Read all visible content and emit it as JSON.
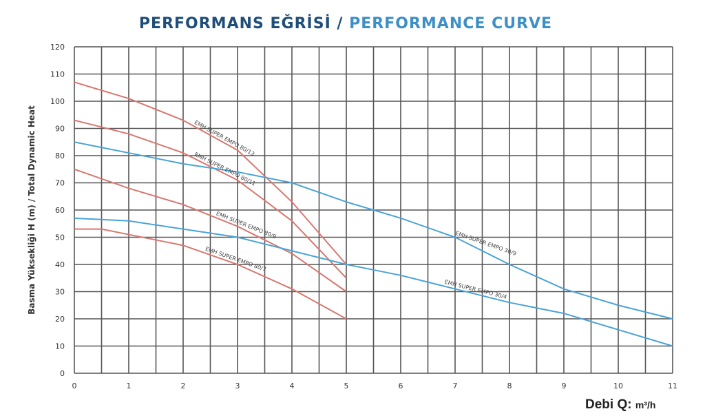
{
  "title": {
    "part1": "PERFORMANS EĞRİSİ /",
    "part2": "PERFORMANCE CURVE",
    "color1": "#1f4e79",
    "color2": "#3d8fc6"
  },
  "chart_data": {
    "type": "line",
    "title": "PERFORMANS EĞRİSİ / PERFORMANCE CURVE",
    "xlabel_main": "Debi Q:",
    "xlabel_unit": "m³/h",
    "ylabel": "Basma Yüksekliği H (m) / Total Dynamic Heat",
    "xlim": [
      0,
      11
    ],
    "ylim": [
      0,
      120
    ],
    "xticks": [
      0,
      1,
      2,
      3,
      4,
      5,
      6,
      7,
      8,
      9,
      10,
      11
    ],
    "yticks": [
      0,
      10,
      20,
      30,
      40,
      50,
      60,
      70,
      80,
      90,
      100,
      110,
      120
    ],
    "grid": true,
    "series": [
      {
        "name": "EMH SUPER EMPO 80/13",
        "color": "#d9776f",
        "x": [
          0,
          1,
          2,
          3,
          4,
          5
        ],
        "y": [
          107,
          101,
          93,
          82,
          63,
          40
        ]
      },
      {
        "name": "EMH SUPER EMPO 80/11",
        "color": "#d9776f",
        "x": [
          0,
          1,
          2,
          3,
          4,
          5
        ],
        "y": [
          93,
          88,
          81,
          71,
          56,
          35
        ]
      },
      {
        "name": "EMH SUPER EMPO 80/9",
        "color": "#d9776f",
        "x": [
          0,
          1,
          2,
          3,
          4,
          5
        ],
        "y": [
          75,
          68,
          62,
          54,
          44,
          30
        ]
      },
      {
        "name": "EMH SUPER EMPO 80/7",
        "color": "#d9776f",
        "x": [
          0,
          0.5,
          1,
          2,
          3,
          4,
          5
        ],
        "y": [
          53,
          53,
          51,
          47,
          40,
          31,
          20
        ]
      },
      {
        "name": "EMH SUPER EMPO 30/9",
        "color": "#4aa3d8",
        "x": [
          0,
          1,
          2,
          3,
          4,
          5,
          6,
          7,
          8,
          9,
          10,
          11
        ],
        "y": [
          85,
          81,
          77,
          74,
          70,
          63,
          57,
          50,
          40,
          31,
          25,
          20
        ]
      },
      {
        "name": "EMH SUPER EMPO 30/4",
        "color": "#4aa3d8",
        "x": [
          0,
          1,
          2,
          3,
          4,
          5,
          6,
          7,
          8,
          9,
          10,
          11
        ],
        "y": [
          57,
          56,
          53,
          50,
          45,
          40,
          36,
          31,
          26,
          22,
          16,
          10
        ]
      }
    ],
    "labels": [
      {
        "series": 0,
        "at_x": 2.2
      },
      {
        "series": 1,
        "at_x": 2.2
      },
      {
        "series": 2,
        "at_x": 2.6
      },
      {
        "series": 3,
        "at_x": 2.4
      },
      {
        "series": 4,
        "at_x": 7.0
      },
      {
        "series": 5,
        "at_x": 6.8
      }
    ]
  }
}
